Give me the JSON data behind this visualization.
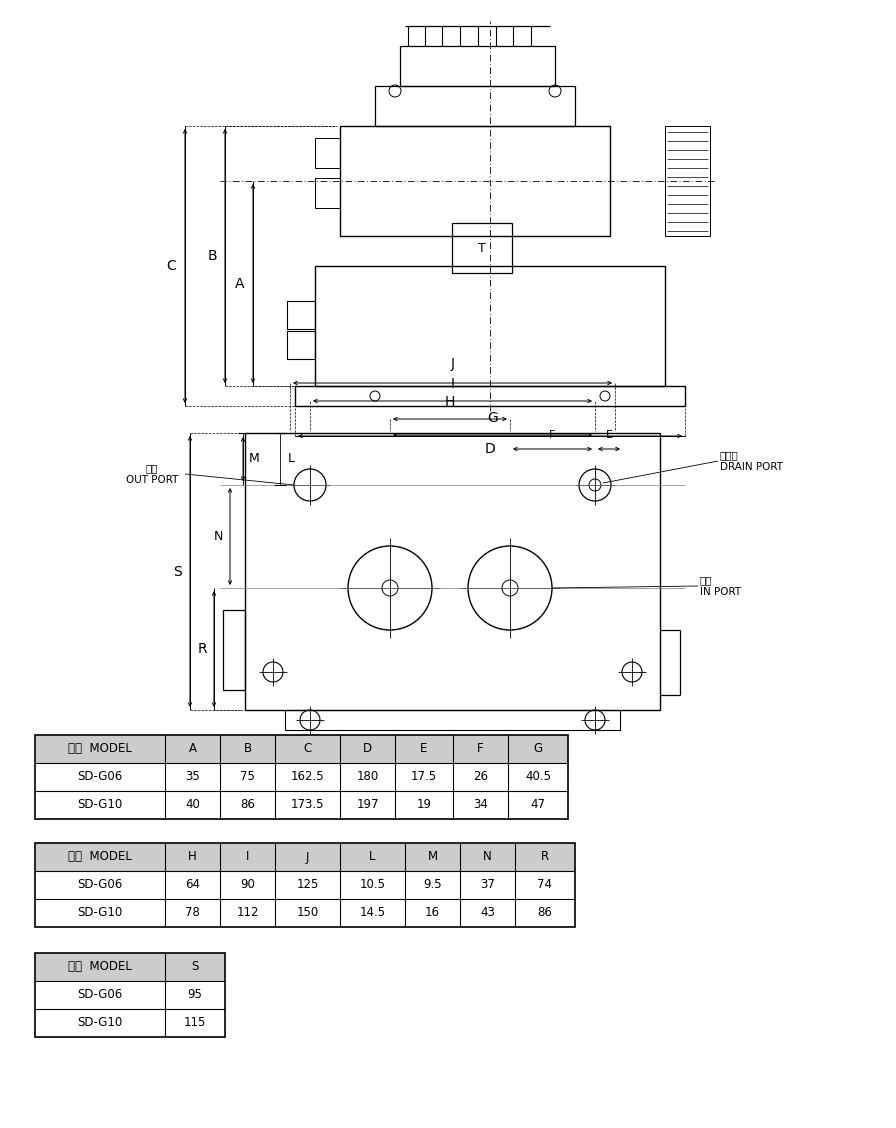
{
  "table1_headers": [
    "型式  MODEL",
    "A",
    "B",
    "C",
    "D",
    "E",
    "F",
    "G"
  ],
  "table1_rows": [
    [
      "SD-G06",
      "35",
      "75",
      "162.5",
      "180",
      "17.5",
      "26",
      "40.5"
    ],
    [
      "SD-G10",
      "40",
      "86",
      "173.5",
      "197",
      "19",
      "34",
      "47"
    ]
  ],
  "table2_headers": [
    "型式  MODEL",
    "H",
    "I",
    "J",
    "L",
    "M",
    "N",
    "R"
  ],
  "table2_rows": [
    [
      "SD-G06",
      "64",
      "90",
      "125",
      "10.5",
      "9.5",
      "37",
      "74"
    ],
    [
      "SD-G10",
      "78",
      "112",
      "150",
      "14.5",
      "16",
      "43",
      "86"
    ]
  ],
  "table3_headers": [
    "型式  MODEL",
    "S"
  ],
  "table3_rows": [
    [
      "SD-G06",
      "95"
    ],
    [
      "SD-G10",
      "115"
    ]
  ],
  "header_bg": "#cccccc",
  "drain_label_cn": "淥流口",
  "drain_label_en": "DRAIN PORT",
  "out_label_cn": "出口",
  "out_label_en": "OUT PORT",
  "in_label_cn": "入口",
  "in_label_en": "IN PORT",
  "T_label": "T"
}
